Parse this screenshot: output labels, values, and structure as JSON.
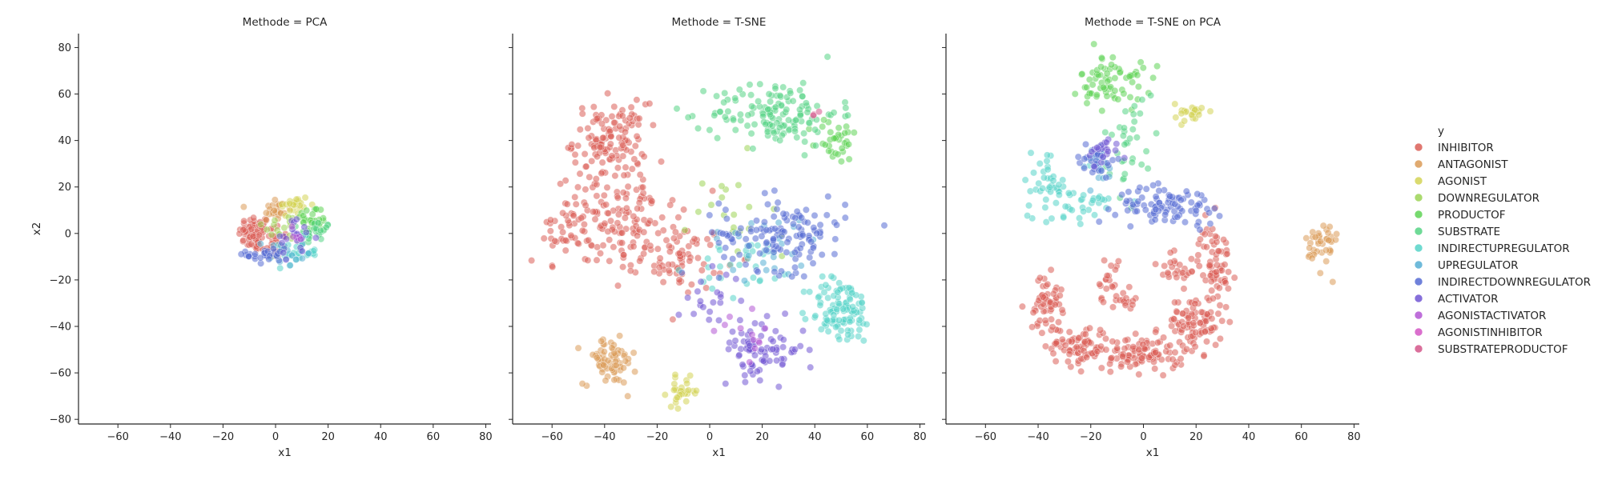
{
  "chart_data": {
    "type": "scatter",
    "xlabel": "x1",
    "ylabel": "x2",
    "xlim": [
      -75,
      82
    ],
    "ylim": [
      -82,
      86
    ],
    "xticks": [
      -60,
      -40,
      -20,
      0,
      20,
      40,
      60,
      80
    ],
    "yticks": [
      -80,
      -60,
      -40,
      -20,
      0,
      20,
      40,
      60,
      80
    ],
    "legend": {
      "title": "y",
      "placement": "right",
      "entries": [
        {
          "name": "INHIBITOR",
          "color": "#db5f57"
        },
        {
          "name": "ANTAGONIST",
          "color": "#db9b57"
        },
        {
          "name": "AGONIST",
          "color": "#d3d356"
        },
        {
          "name": "DOWNREGULATOR",
          "color": "#9cd356"
        },
        {
          "name": "PRODUCTOF",
          "color": "#5fd356"
        },
        {
          "name": "SUBSTRATE",
          "color": "#56d385"
        },
        {
          "name": "INDIRECTUPREGULATOR",
          "color": "#56d3c8"
        },
        {
          "name": "UPREGULATOR",
          "color": "#56aed3"
        },
        {
          "name": "INDIRECTDOWNREGULATOR",
          "color": "#566bd3"
        },
        {
          "name": "ACTIVATOR",
          "color": "#7156d3"
        },
        {
          "name": "AGONISTACTIVATOR",
          "color": "#b356d3"
        },
        {
          "name": "AGONISTINHIBITOR",
          "color": "#d356c4"
        },
        {
          "name": "SUBSTRATEPRODUCTOF",
          "color": "#d3568a"
        }
      ]
    },
    "panels": [
      {
        "title": "Methode = PCA",
        "clusters": [
          {
            "label": "INHIBITOR",
            "cx": -8,
            "cy": 0,
            "sx": 3,
            "sy": 4,
            "n": 60
          },
          {
            "label": "INHIBITOR",
            "cx": -2,
            "cy": -3,
            "sx": 4,
            "sy": 4,
            "n": 30
          },
          {
            "label": "ANTAGONIST",
            "cx": 0,
            "cy": 10,
            "sx": 3,
            "sy": 3,
            "n": 25
          },
          {
            "label": "AGONIST",
            "cx": 7,
            "cy": 12,
            "sx": 3,
            "sy": 2.5,
            "n": 25
          },
          {
            "label": "DOWNREGULATOR",
            "cx": 3,
            "cy": 3,
            "sx": 4,
            "sy": 3,
            "n": 15
          },
          {
            "label": "PRODUCTOF",
            "cx": 14,
            "cy": 6,
            "sx": 3,
            "sy": 3,
            "n": 30
          },
          {
            "label": "SUBSTRATE",
            "cx": 15,
            "cy": 0,
            "sx": 3,
            "sy": 3,
            "n": 25
          },
          {
            "label": "INDIRECTUPREGULATOR",
            "cx": 8,
            "cy": -8,
            "sx": 4,
            "sy": 3,
            "n": 35
          },
          {
            "label": "UPREGULATOR",
            "cx": 3,
            "cy": -8,
            "sx": 4,
            "sy": 3,
            "n": 15
          },
          {
            "label": "INDIRECTDOWNREGULATOR",
            "cx": -3,
            "cy": -9,
            "sx": 4,
            "sy": 2.5,
            "n": 30
          },
          {
            "label": "ACTIVATOR",
            "cx": 7,
            "cy": -2,
            "sx": 4,
            "sy": 4,
            "n": 20
          },
          {
            "label": "AGONISTACTIVATOR",
            "cx": 8,
            "cy": 0,
            "sx": 2,
            "sy": 2,
            "n": 6
          }
        ]
      },
      {
        "title": "Methode = T-SNE",
        "clusters": [
          {
            "label": "INHIBITOR",
            "cx": -38,
            "cy": 40,
            "sx": 7,
            "sy": 8,
            "n": 130
          },
          {
            "label": "INHIBITOR",
            "cx": -35,
            "cy": 5,
            "sx": 12,
            "sy": 10,
            "n": 150
          },
          {
            "label": "INHIBITOR",
            "cx": -10,
            "cy": -10,
            "sx": 8,
            "sy": 7,
            "n": 70
          },
          {
            "label": "INHIBITOR",
            "cx": -60,
            "cy": -5,
            "sx": 4,
            "sy": 8,
            "n": 20
          },
          {
            "label": "ANTAGONIST",
            "cx": -38,
            "cy": -55,
            "sx": 5,
            "sy": 5,
            "n": 70
          },
          {
            "label": "AGONIST",
            "cx": -10,
            "cy": -68,
            "sx": 3,
            "sy": 3,
            "n": 30
          },
          {
            "label": "DOWNREGULATOR",
            "cx": 5,
            "cy": 0,
            "sx": 10,
            "sy": 15,
            "n": 20
          },
          {
            "label": "PRODUCTOF",
            "cx": 48,
            "cy": 40,
            "sx": 4,
            "sy": 5,
            "n": 35
          },
          {
            "label": "SUBSTRATE",
            "cx": 25,
            "cy": 52,
            "sx": 12,
            "sy": 7,
            "n": 140
          },
          {
            "label": "INDIRECTUPREGULATOR",
            "cx": 50,
            "cy": -33,
            "sx": 6,
            "sy": 7,
            "n": 110
          },
          {
            "label": "INDIRECTUPREGULATOR",
            "cx": 15,
            "cy": -15,
            "sx": 10,
            "sy": 6,
            "n": 30
          },
          {
            "label": "UPREGULATOR",
            "cx": 20,
            "cy": -5,
            "sx": 12,
            "sy": 8,
            "n": 25
          },
          {
            "label": "INDIRECTDOWNREGULATOR",
            "cx": 28,
            "cy": 0,
            "sx": 12,
            "sy": 8,
            "n": 130
          },
          {
            "label": "ACTIVATOR",
            "cx": 20,
            "cy": -50,
            "sx": 8,
            "sy": 6,
            "n": 80
          },
          {
            "label": "ACTIVATOR",
            "cx": 0,
            "cy": -28,
            "sx": 6,
            "sy": 6,
            "n": 20
          },
          {
            "label": "AGONISTACTIVATOR",
            "cx": 15,
            "cy": -45,
            "sx": 6,
            "sy": 5,
            "n": 12
          },
          {
            "label": "SUBSTRATEPRODUCTOF",
            "cx": 42,
            "cy": 50,
            "sx": 2,
            "sy": 2,
            "n": 3
          }
        ]
      },
      {
        "title": "Methode = T-SNE on PCA",
        "clusters": [
          {
            "label": "INHIBITOR",
            "cx": -25,
            "cy": -48,
            "sx": 6,
            "sy": 4,
            "n": 80
          },
          {
            "label": "INHIBITOR",
            "cx": 0,
            "cy": -52,
            "sx": 8,
            "sy": 4,
            "n": 100
          },
          {
            "label": "INHIBITOR",
            "cx": 20,
            "cy": -38,
            "sx": 5,
            "sy": 6,
            "n": 90
          },
          {
            "label": "INHIBITOR",
            "cx": -37,
            "cy": -30,
            "sx": 3,
            "sy": 6,
            "n": 60
          },
          {
            "label": "INHIBITOR",
            "cx": 27,
            "cy": -12,
            "sx": 3,
            "sy": 8,
            "n": 70
          },
          {
            "label": "INHIBITOR",
            "cx": -12,
            "cy": -20,
            "sx": 3,
            "sy": 5,
            "n": 25
          },
          {
            "label": "INHIBITOR",
            "cx": 12,
            "cy": -15,
            "sx": 4,
            "sy": 5,
            "n": 25
          },
          {
            "label": "INHIBITOR",
            "cx": -5,
            "cy": -30,
            "sx": 2,
            "sy": 2,
            "n": 10
          },
          {
            "label": "ANTAGONIST",
            "cx": 68,
            "cy": -5,
            "sx": 3,
            "sy": 6,
            "n": 40
          },
          {
            "label": "AGONIST",
            "cx": 18,
            "cy": 52,
            "sx": 3,
            "sy": 2,
            "n": 25
          },
          {
            "label": "PRODUCTOF",
            "cx": -12,
            "cy": 65,
            "sx": 6,
            "sy": 6,
            "n": 70
          },
          {
            "label": "SUBSTRATE",
            "cx": -5,
            "cy": 40,
            "sx": 5,
            "sy": 10,
            "n": 35
          },
          {
            "label": "INDIRECTUPREGULATOR",
            "cx": -35,
            "cy": 20,
            "sx": 6,
            "sy": 8,
            "n": 50
          },
          {
            "label": "INDIRECTUPREGULATOR",
            "cx": -20,
            "cy": 12,
            "sx": 6,
            "sy": 3,
            "n": 20
          },
          {
            "label": "UPREGULATOR",
            "cx": -18,
            "cy": 30,
            "sx": 4,
            "sy": 5,
            "n": 20
          },
          {
            "label": "INDIRECTDOWNREGULATOR",
            "cx": 10,
            "cy": 12,
            "sx": 10,
            "sy": 4,
            "n": 90
          },
          {
            "label": "INDIRECTDOWNREGULATOR",
            "cx": -18,
            "cy": 32,
            "sx": 4,
            "sy": 4,
            "n": 25
          },
          {
            "label": "ACTIVATOR",
            "cx": -15,
            "cy": 35,
            "sx": 3,
            "sy": 3,
            "n": 20
          }
        ]
      }
    ]
  }
}
